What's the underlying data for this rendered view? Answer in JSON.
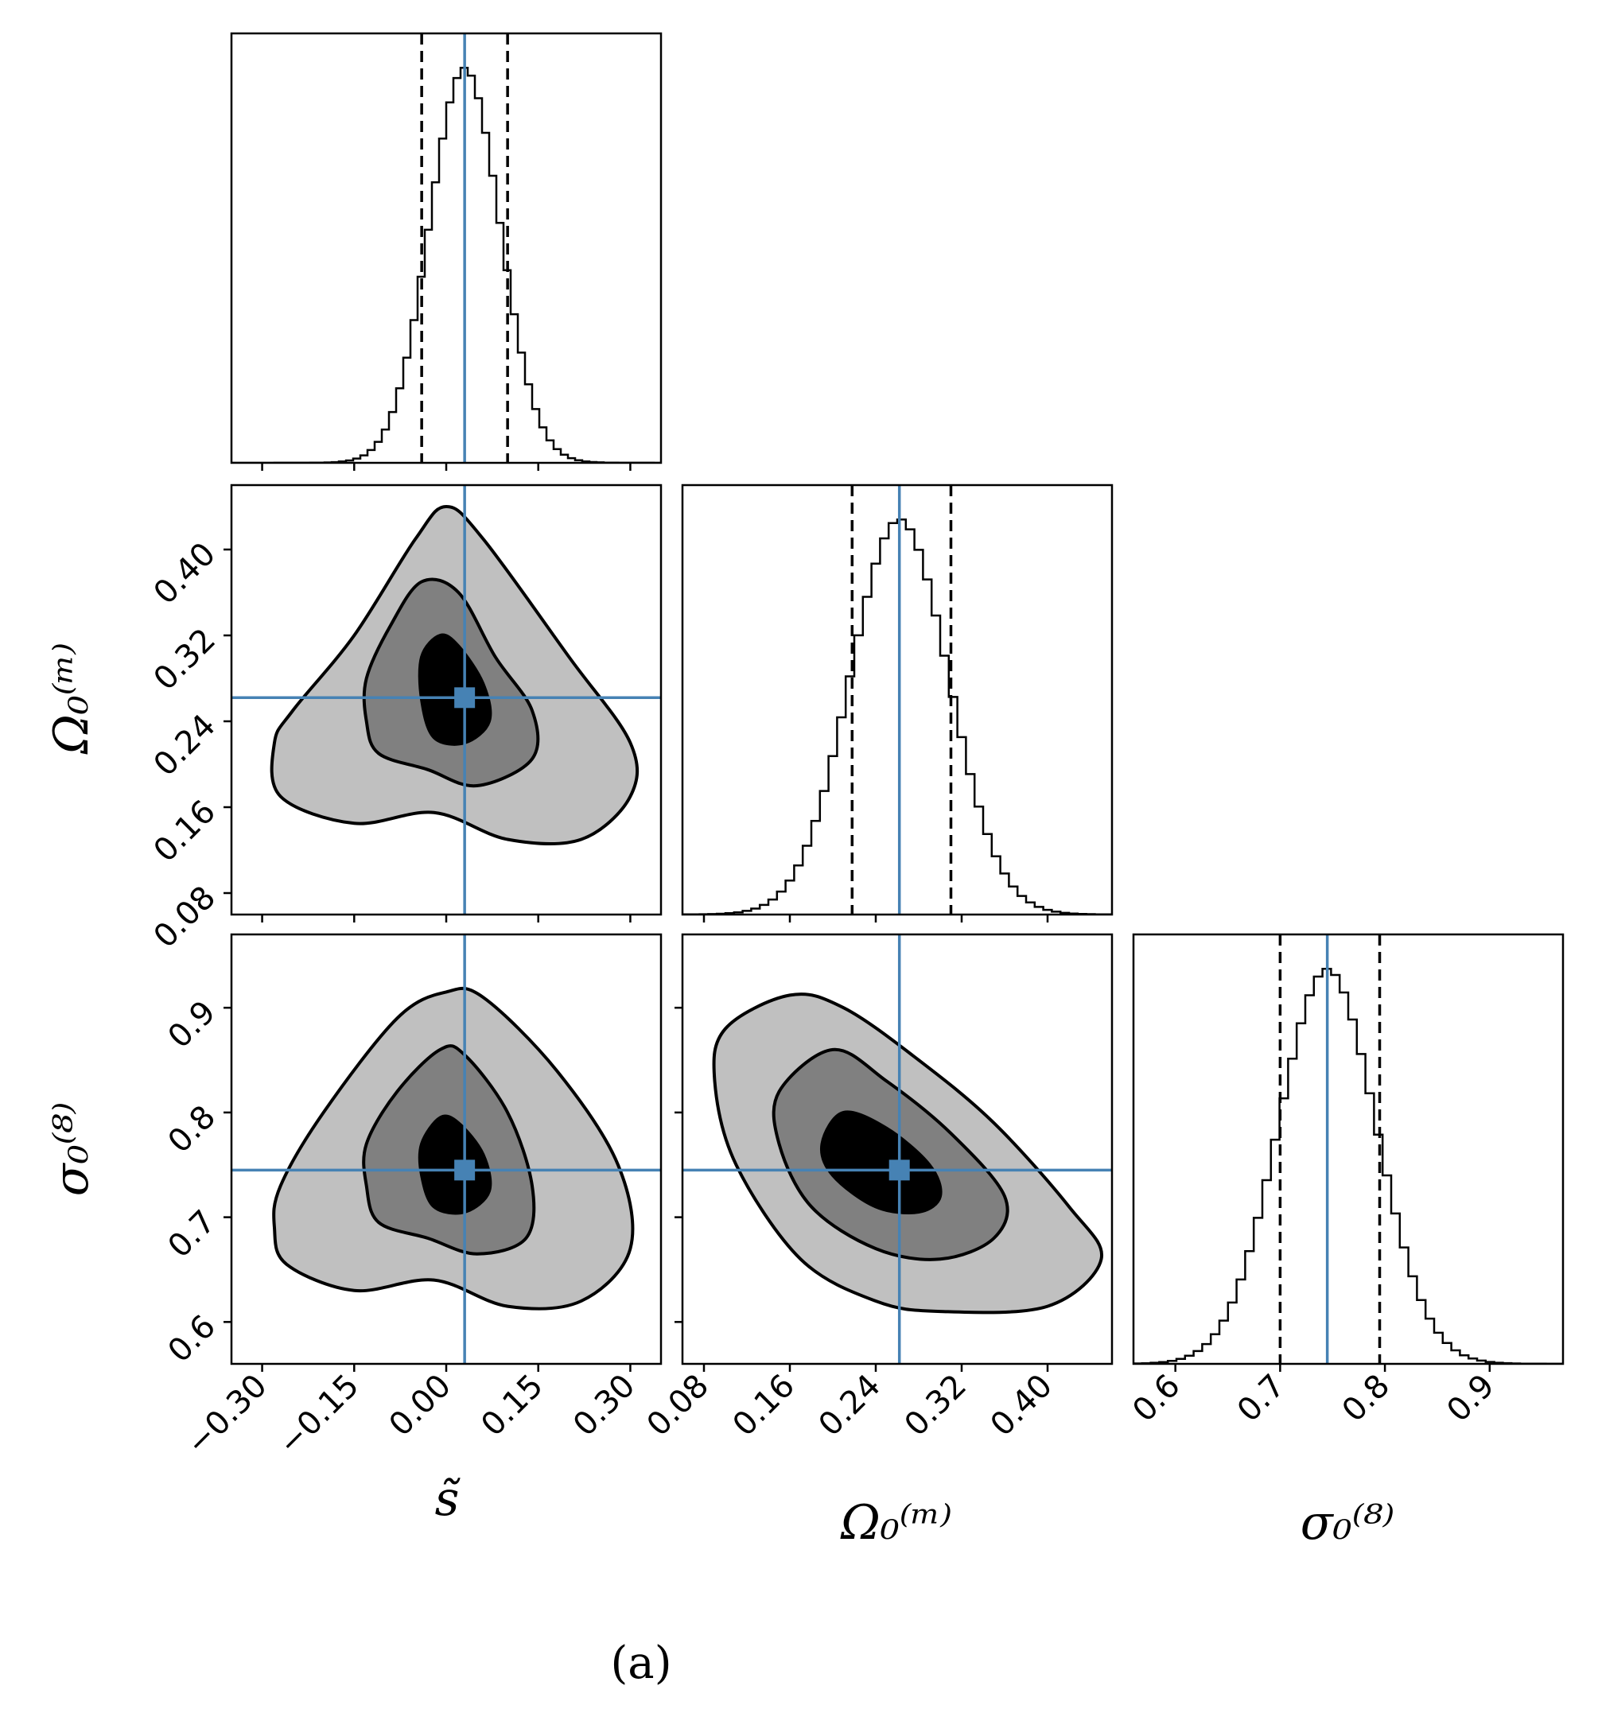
{
  "figure": {
    "caption": "(a)"
  },
  "colors": {
    "truth": "#4682b4",
    "c1": "#000000",
    "c2": "#808080",
    "c3": "#c0c0c0"
  },
  "chart_data": {
    "type": "corner",
    "parameters": [
      {
        "key": "s",
        "label": "s̃",
        "range": [
          -0.35,
          0.35
        ],
        "ticks": [
          -0.3,
          -0.15,
          0.0,
          0.15,
          0.3
        ],
        "tick_labels": [
          "−0.30",
          "−0.15",
          "0.00",
          "0.15",
          "0.30"
        ],
        "truth": 0.03,
        "quantile_lines": [
          -0.04,
          0.1
        ]
      },
      {
        "key": "om",
        "label": "Ω₀⁽ᵐ⁾",
        "range": [
          0.06,
          0.46
        ],
        "ticks": [
          0.08,
          0.16,
          0.24,
          0.32,
          0.4
        ],
        "tick_labels": [
          "0.08",
          "0.16",
          "0.24",
          "0.32",
          "0.40"
        ],
        "truth": 0.262,
        "quantile_lines": [
          0.218,
          0.31
        ]
      },
      {
        "key": "s8",
        "label": "σ₀⁽⁸⁾",
        "range": [
          0.56,
          0.97
        ],
        "ticks": [
          0.6,
          0.7,
          0.8,
          0.9
        ],
        "tick_labels": [
          "0.6",
          "0.7",
          "0.8",
          "0.9"
        ],
        "truth": 0.745,
        "quantile_lines": [
          0.7,
          0.795
        ]
      }
    ],
    "histograms": [
      {
        "param": "s",
        "mean": 0.03,
        "sigma": 0.058,
        "bins": 60
      },
      {
        "param": "om",
        "mean": 0.262,
        "sigma": 0.046,
        "bins": 50
      },
      {
        "param": "s8",
        "mean": 0.745,
        "sigma": 0.047,
        "bins": 50
      }
    ],
    "contours": [
      {
        "x": "s",
        "y": "om",
        "levels": [
          {
            "fill": "#c0c0c0",
            "points": [
              [
                -0.28,
                0.22
              ],
              [
                -0.27,
                0.17
              ],
              [
                -0.15,
                0.145
              ],
              [
                -0.02,
                0.155
              ],
              [
                0.1,
                0.13
              ],
              [
                0.22,
                0.13
              ],
              [
                0.3,
                0.17
              ],
              [
                0.3,
                0.22
              ],
              [
                0.2,
                0.3
              ],
              [
                0.06,
                0.41
              ],
              [
                0.0,
                0.44
              ],
              [
                -0.05,
                0.41
              ],
              [
                -0.15,
                0.32
              ],
              [
                -0.25,
                0.25
              ]
            ]
          },
          {
            "fill": "#808080",
            "points": [
              [
                -0.13,
                0.24
              ],
              [
                -0.11,
                0.21
              ],
              [
                -0.03,
                0.195
              ],
              [
                0.05,
                0.18
              ],
              [
                0.14,
                0.205
              ],
              [
                0.14,
                0.25
              ],
              [
                0.08,
                0.3
              ],
              [
                0.02,
                0.36
              ],
              [
                -0.04,
                0.37
              ],
              [
                -0.09,
                0.33
              ],
              [
                -0.13,
                0.28
              ]
            ]
          },
          {
            "fill": "#000000",
            "points": [
              [
                -0.04,
                0.26
              ],
              [
                -0.02,
                0.225
              ],
              [
                0.03,
                0.22
              ],
              [
                0.07,
                0.24
              ],
              [
                0.06,
                0.275
              ],
              [
                0.02,
                0.31
              ],
              [
                -0.01,
                0.32
              ],
              [
                -0.04,
                0.3
              ]
            ]
          }
        ]
      },
      {
        "x": "s",
        "y": "s8",
        "levels": [
          {
            "fill": "#c0c0c0",
            "points": [
              [
                -0.28,
                0.69
              ],
              [
                -0.26,
                0.655
              ],
              [
                -0.15,
                0.63
              ],
              [
                -0.02,
                0.64
              ],
              [
                0.1,
                0.615
              ],
              [
                0.22,
                0.62
              ],
              [
                0.3,
                0.67
              ],
              [
                0.28,
                0.75
              ],
              [
                0.18,
                0.84
              ],
              [
                0.06,
                0.91
              ],
              [
                0.0,
                0.915
              ],
              [
                -0.08,
                0.89
              ],
              [
                -0.2,
                0.8
              ],
              [
                -0.27,
                0.73
              ]
            ]
          },
          {
            "fill": "#808080",
            "points": [
              [
                -0.13,
                0.73
              ],
              [
                -0.11,
                0.695
              ],
              [
                -0.03,
                0.68
              ],
              [
                0.05,
                0.665
              ],
              [
                0.13,
                0.68
              ],
              [
                0.14,
                0.73
              ],
              [
                0.1,
                0.8
              ],
              [
                0.03,
                0.855
              ],
              [
                -0.01,
                0.86
              ],
              [
                -0.08,
                0.82
              ],
              [
                -0.13,
                0.77
              ]
            ]
          },
          {
            "fill": "#000000",
            "points": [
              [
                -0.04,
                0.74
              ],
              [
                -0.02,
                0.71
              ],
              [
                0.03,
                0.705
              ],
              [
                0.07,
                0.725
              ],
              [
                0.06,
                0.76
              ],
              [
                0.02,
                0.79
              ],
              [
                -0.01,
                0.795
              ],
              [
                -0.04,
                0.77
              ]
            ]
          }
        ]
      },
      {
        "x": "om",
        "y": "s8",
        "levels": [
          {
            "fill": "#c0c0c0",
            "points": [
              [
                0.1,
                0.88
              ],
              [
                0.16,
                0.912
              ],
              [
                0.21,
                0.9
              ],
              [
                0.28,
                0.85
              ],
              [
                0.35,
                0.79
              ],
              [
                0.42,
                0.71
              ],
              [
                0.45,
                0.66
              ],
              [
                0.4,
                0.615
              ],
              [
                0.3,
                0.61
              ],
              [
                0.24,
                0.62
              ],
              [
                0.17,
                0.66
              ],
              [
                0.11,
                0.75
              ],
              [
                0.09,
                0.83
              ]
            ]
          },
          {
            "fill": "#808080",
            "points": [
              [
                0.15,
                0.82
              ],
              [
                0.2,
                0.86
              ],
              [
                0.25,
                0.83
              ],
              [
                0.31,
                0.78
              ],
              [
                0.36,
                0.72
              ],
              [
                0.35,
                0.68
              ],
              [
                0.3,
                0.66
              ],
              [
                0.24,
                0.67
              ],
              [
                0.18,
                0.71
              ],
              [
                0.15,
                0.77
              ]
            ]
          },
          {
            "fill": "#000000",
            "points": [
              [
                0.19,
                0.77
              ],
              [
                0.21,
                0.8
              ],
              [
                0.25,
                0.785
              ],
              [
                0.29,
                0.75
              ],
              [
                0.3,
                0.72
              ],
              [
                0.28,
                0.705
              ],
              [
                0.24,
                0.71
              ],
              [
                0.2,
                0.74
              ]
            ]
          }
        ]
      }
    ]
  }
}
